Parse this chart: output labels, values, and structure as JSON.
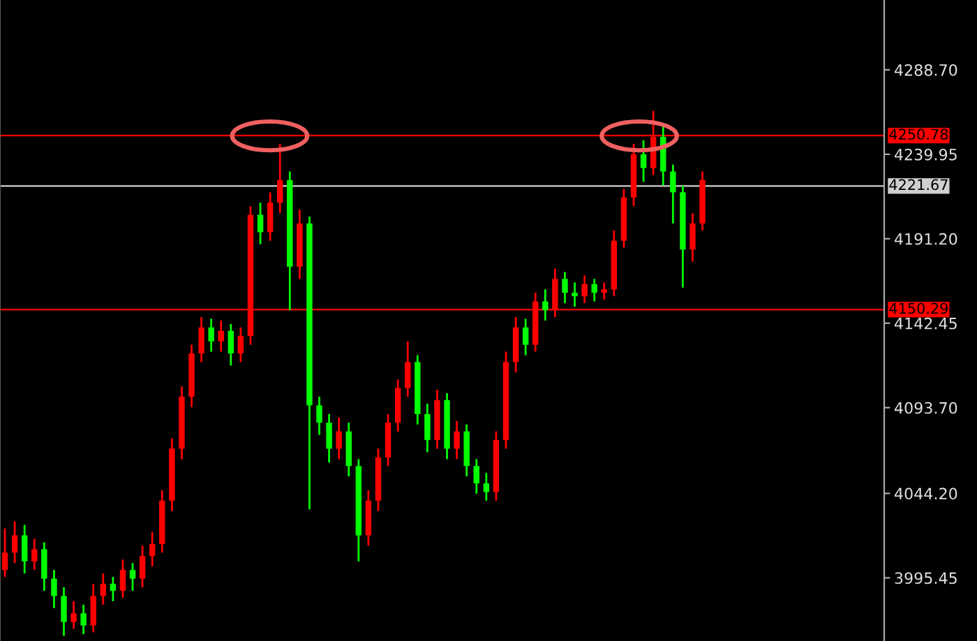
{
  "chart_data": {
    "type": "candlestick",
    "categories": [
      null,
      null,
      null,
      null,
      null,
      null,
      null,
      null,
      null,
      null,
      null,
      null,
      null,
      null,
      null,
      null,
      null,
      null,
      null,
      null,
      null,
      null,
      null,
      null,
      null,
      null,
      null,
      null,
      null,
      null,
      null,
      null,
      null,
      null,
      null,
      null,
      null,
      null,
      null,
      null,
      null,
      null,
      null,
      null,
      null,
      null,
      null,
      null,
      null,
      null,
      null,
      null,
      null,
      null,
      null,
      null,
      null,
      null,
      null,
      null,
      null,
      null,
      null,
      null,
      null,
      null,
      null,
      null,
      null,
      null,
      null,
      null,
      null,
      null,
      null,
      null,
      null,
      null,
      null,
      null,
      null,
      null,
      null,
      null,
      null,
      null,
      null,
      null,
      null,
      null
    ],
    "ohlc": [
      [
        4000,
        4024,
        3996,
        4010
      ],
      [
        4010,
        4028,
        4004,
        4020
      ],
      [
        4020,
        4026,
        3998,
        4005
      ],
      [
        4005,
        4018,
        4000,
        4012
      ],
      [
        4012,
        4016,
        3988,
        3995
      ],
      [
        3995,
        4000,
        3978,
        3985
      ],
      [
        3985,
        3990,
        3962,
        3970
      ],
      [
        3970,
        3982,
        3966,
        3975
      ],
      [
        3975,
        3980,
        3963,
        3968
      ],
      [
        3968,
        3992,
        3964,
        3985
      ],
      [
        3985,
        3998,
        3980,
        3992
      ],
      [
        3992,
        3996,
        3982,
        3988
      ],
      [
        3988,
        4006,
        3984,
        4000
      ],
      [
        4000,
        4004,
        3988,
        3995
      ],
      [
        3995,
        4014,
        3990,
        4008
      ],
      [
        4008,
        4022,
        4002,
        4015
      ],
      [
        4015,
        4046,
        4010,
        4040
      ],
      [
        4040,
        4076,
        4034,
        4070
      ],
      [
        4070,
        4106,
        4064,
        4100
      ],
      [
        4100,
        4130,
        4094,
        4125
      ],
      [
        4125,
        4146,
        4120,
        4140
      ],
      [
        4140,
        4145,
        4126,
        4132
      ],
      [
        4132,
        4144,
        4126,
        4138
      ],
      [
        4138,
        4142,
        4118,
        4125
      ],
      [
        4125,
        4140,
        4120,
        4135
      ],
      [
        4135,
        4210,
        4130,
        4205
      ],
      [
        4205,
        4212,
        4188,
        4195
      ],
      [
        4195,
        4218,
        4190,
        4212
      ],
      [
        4212,
        4246,
        4206,
        4225
      ],
      [
        4225,
        4230,
        4150,
        4175
      ],
      [
        4175,
        4208,
        4168,
        4200
      ],
      [
        4200,
        4204,
        4035,
        4095
      ],
      [
        4095,
        4100,
        4078,
        4085
      ],
      [
        4085,
        4090,
        4062,
        4070
      ],
      [
        4070,
        4088,
        4064,
        4080
      ],
      [
        4080,
        4085,
        4054,
        4060
      ],
      [
        4060,
        4064,
        4005,
        4020
      ],
      [
        4020,
        4046,
        4014,
        4040
      ],
      [
        4040,
        4070,
        4034,
        4065
      ],
      [
        4065,
        4090,
        4060,
        4085
      ],
      [
        4085,
        4110,
        4080,
        4105
      ],
      [
        4105,
        4132,
        4100,
        4120
      ],
      [
        4120,
        4124,
        4084,
        4090
      ],
      [
        4090,
        4096,
        4068,
        4075
      ],
      [
        4075,
        4104,
        4070,
        4098
      ],
      [
        4098,
        4102,
        4064,
        4070
      ],
      [
        4070,
        4086,
        4064,
        4080
      ],
      [
        4080,
        4084,
        4054,
        4060
      ],
      [
        4060,
        4064,
        4044,
        4050
      ],
      [
        4050,
        4056,
        4040,
        4045
      ],
      [
        4045,
        4080,
        4040,
        4075
      ],
      [
        4075,
        4126,
        4070,
        4120
      ],
      [
        4120,
        4146,
        4114,
        4140
      ],
      [
        4140,
        4145,
        4124,
        4130
      ],
      [
        4130,
        4160,
        4126,
        4155
      ],
      [
        4155,
        4162,
        4144,
        4150
      ],
      [
        4150,
        4174,
        4146,
        4168
      ],
      [
        4168,
        4172,
        4154,
        4160
      ],
      [
        4160,
        4166,
        4152,
        4158
      ],
      [
        4158,
        4170,
        4154,
        4165
      ],
      [
        4165,
        4168,
        4155,
        4160
      ],
      [
        4160,
        4166,
        4156,
        4162
      ],
      [
        4162,
        4196,
        4158,
        4190
      ],
      [
        4190,
        4220,
        4186,
        4215
      ],
      [
        4215,
        4246,
        4210,
        4240
      ],
      [
        4240,
        4248,
        4224,
        4232
      ],
      [
        4232,
        4265,
        4228,
        4250
      ],
      [
        4250,
        4256,
        4222,
        4230
      ],
      [
        4230,
        4234,
        4200,
        4218
      ],
      [
        4218,
        4222,
        4163,
        4185
      ],
      [
        4185,
        4206,
        4178,
        4200
      ],
      [
        4200,
        4230,
        4196,
        4225
      ],
      null,
      null,
      null,
      null,
      null,
      null,
      null,
      null,
      null,
      null,
      null,
      null,
      null,
      null,
      null,
      null,
      null,
      null
    ],
    "colors": [
      "#ff0000",
      "#ff0000",
      "#00ff00",
      "#ff0000",
      "#00ff00",
      "#00ff00",
      "#00ff00",
      "#ff0000",
      "#00ff00",
      "#ff0000",
      "#ff0000",
      "#00ff00",
      "#ff0000",
      "#00ff00",
      "#ff0000",
      "#ff0000",
      "#ff0000",
      "#ff0000",
      "#ff0000",
      "#ff0000",
      "#ff0000",
      "#00ff00",
      "#ff0000",
      "#00ff00",
      "#ff0000",
      "#ff0000",
      "#00ff00",
      "#ff0000",
      "#ff0000",
      "#00ff00",
      "#ff0000",
      "#00ff00",
      "#00ff00",
      "#00ff00",
      "#ff0000",
      "#00ff00",
      "#00ff00",
      "#ff0000",
      "#ff0000",
      "#ff0000",
      "#ff0000",
      "#ff0000",
      "#00ff00",
      "#00ff00",
      "#ff0000",
      "#00ff00",
      "#ff0000",
      "#00ff00",
      "#00ff00",
      "#00ff00",
      "#ff0000",
      "#ff0000",
      "#ff0000",
      "#00ff00",
      "#ff0000",
      "#00ff00",
      "#ff0000",
      "#00ff00",
      "#00ff00",
      "#ff0000",
      "#00ff00",
      "#ff0000",
      "#ff0000",
      "#ff0000",
      "#ff0000",
      "#00ff00",
      "#ff0000",
      "#00ff00",
      "#00ff00",
      "#00ff00",
      "#ff0000",
      "#ff0000",
      null,
      null,
      null,
      null,
      null,
      null,
      null,
      null,
      null,
      null,
      null,
      null,
      null,
      null,
      null,
      null,
      null,
      null
    ],
    "ylim": [
      3959,
      4329
    ],
    "yticks": [
      {
        "value": 3995.45,
        "label": "3995.45"
      },
      {
        "value": 4044.2,
        "label": "4044.20"
      },
      {
        "value": 4093.7,
        "label": "4093.70"
      },
      {
        "value": 4142.45,
        "label": "4142.45"
      },
      {
        "value": 4191.2,
        "label": "4191.20"
      },
      {
        "value": 4239.95,
        "label": "4239.95"
      },
      {
        "value": 4288.7,
        "label": "4288.70"
      }
    ],
    "ref_lines": [
      {
        "axis": "y",
        "value": 4250.78,
        "label": "4250.78",
        "color": "#ff0000"
      },
      {
        "axis": "y",
        "value": 4221.67,
        "label": "4221.67",
        "color": "#d0d0d0"
      },
      {
        "axis": "y",
        "value": 4150.29,
        "label": "4150.29",
        "color": "#ff0000"
      }
    ],
    "tick_labels": "y",
    "grid": false,
    "legend": false
  }
}
